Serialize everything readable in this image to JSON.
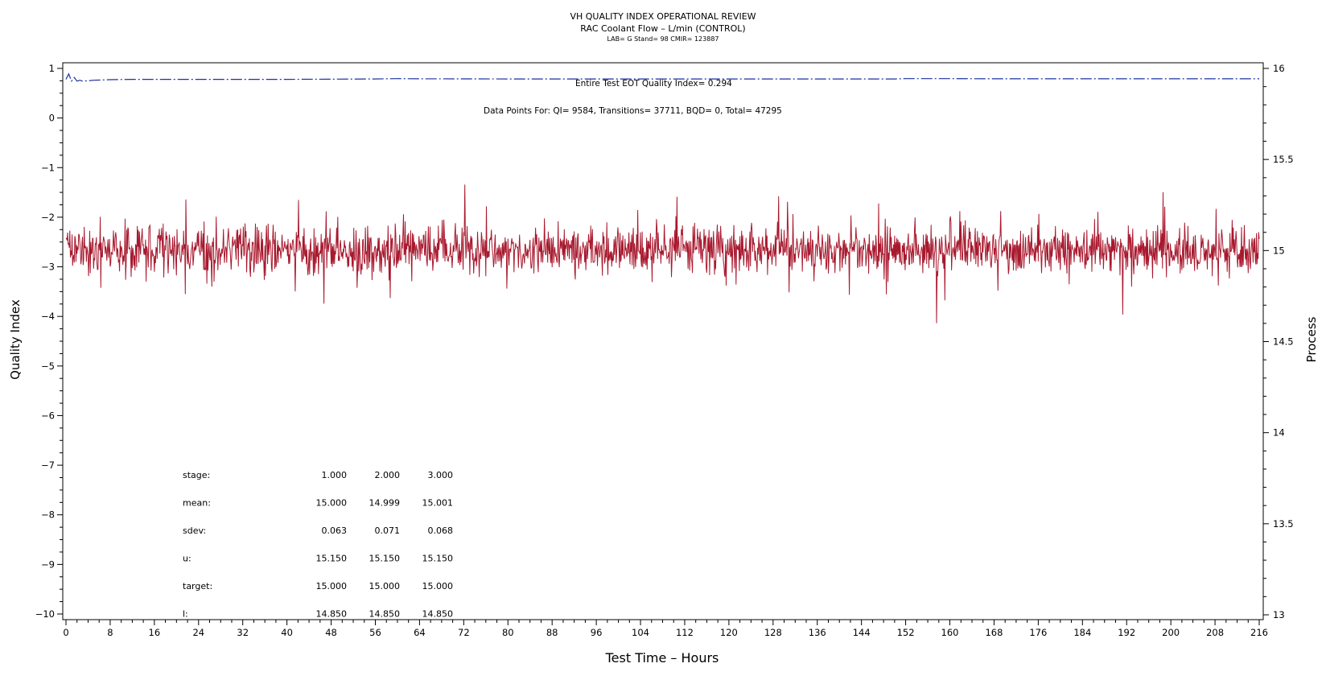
{
  "titles": {
    "line1": "VH QUALITY INDEX OPERATIONAL REVIEW",
    "line2": "RAC Coolant Flow – L/min (CONTROL)",
    "line3": "LAB= G Stand= 98 CMIR= 123887"
  },
  "annotations": {
    "eot": "Entire Test EOT Quality Index=   0.294",
    "points": "Data Points For: QI=  9584, Transitions= 37711, BQD=     0, Total= 47295"
  },
  "colors": {
    "process": "#a8192e",
    "quality_index": "#1c2fa0",
    "axis": "#000000"
  },
  "chart_data": {
    "type": "line",
    "xlabel": "Test Time – Hours",
    "ylabel_left": "Quality Index",
    "ylabel_right": "Process",
    "xlim": [
      0,
      216
    ],
    "ylim_left": [
      -10,
      1
    ],
    "ylim_right": [
      13,
      16
    ],
    "x_ticks": [
      0,
      8,
      16,
      24,
      32,
      40,
      48,
      56,
      64,
      72,
      80,
      88,
      96,
      104,
      112,
      120,
      128,
      136,
      144,
      152,
      160,
      168,
      176,
      184,
      192,
      200,
      208,
      216
    ],
    "y_ticks_left": [
      1,
      0,
      -1,
      -2,
      -3,
      -4,
      -5,
      -6,
      -7,
      -8,
      -9,
      -10
    ],
    "y_ticks_right": [
      16,
      15.5,
      15,
      14.5,
      14,
      13.5,
      13
    ],
    "grid": false,
    "series": [
      {
        "axis": "right",
        "style": "solid",
        "mean": 15.0,
        "sdev": 0.068,
        "x_step": 0.1,
        "x_range": [
          0,
          216
        ]
      },
      {
        "axis": "right",
        "style": "dash-dot",
        "x": [
          0,
          0.5,
          1,
          1.5,
          2,
          2.5,
          3,
          4,
          5,
          6,
          8,
          12,
          16,
          20,
          30,
          40,
          56,
          60,
          64,
          80,
          100,
          120,
          140,
          150,
          152,
          156,
          160,
          168,
          180,
          200,
          216
        ],
        "y": [
          15.94,
          15.97,
          15.93,
          15.95,
          15.93,
          15.935,
          15.93,
          15.932,
          15.935,
          15.936,
          15.938,
          15.94,
          15.94,
          15.94,
          15.94,
          15.94,
          15.942,
          15.944,
          15.943,
          15.942,
          15.942,
          15.942,
          15.942,
          15.942,
          15.944,
          15.944,
          15.944,
          15.943,
          15.943,
          15.943,
          15.943
        ]
      }
    ],
    "stats_table": {
      "rows": [
        {
          "label": "stage:",
          "values": [
            "1.000",
            "2.000",
            "3.000"
          ]
        },
        {
          "label": "mean:",
          "values": [
            "15.000",
            "14.999",
            "15.001"
          ]
        },
        {
          "label": "sdev:",
          "values": [
            "0.063",
            "0.071",
            "0.068"
          ]
        },
        {
          "label": "u:",
          "values": [
            "15.150",
            "15.150",
            "15.150"
          ]
        },
        {
          "label": "target:",
          "values": [
            "15.000",
            "15.000",
            "15.000"
          ]
        },
        {
          "label": "l:",
          "values": [
            "14.850",
            "14.850",
            "14.850"
          ]
        }
      ]
    }
  }
}
